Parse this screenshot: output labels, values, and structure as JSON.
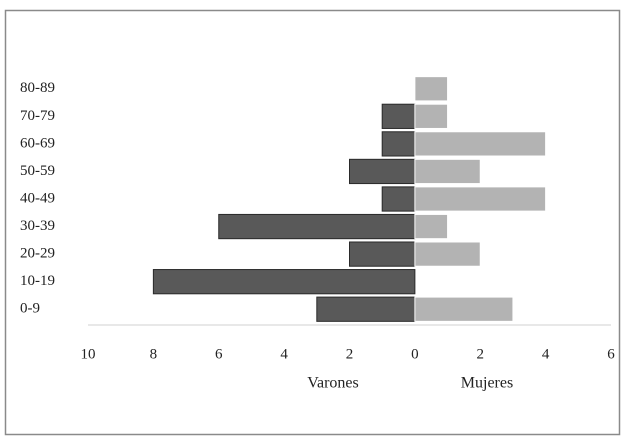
{
  "chart_data": {
    "type": "bar",
    "orientation": "horizontal",
    "categories": [
      "0-9",
      "10-19",
      "20-29",
      "30-39",
      "40-49",
      "50-59",
      "60-69",
      "70-79",
      "80-89"
    ],
    "series": [
      {
        "name": "Varones",
        "color": "#595959",
        "values": [
          -3,
          -8,
          -2,
          -6,
          -1,
          -2,
          -1,
          -1,
          0
        ]
      },
      {
        "name": "Mujeres",
        "color": "#b3b3b3",
        "values": [
          3,
          0,
          2,
          1,
          4,
          2,
          4,
          1,
          1
        ]
      }
    ],
    "xlim": [
      -10,
      6
    ],
    "xticks": [
      {
        "value": -10,
        "label": "10"
      },
      {
        "value": -8,
        "label": "8"
      },
      {
        "value": -6,
        "label": "6"
      },
      {
        "value": -4,
        "label": "4"
      },
      {
        "value": -2,
        "label": "2"
      },
      0,
      2,
      4,
      6
    ],
    "grid": false
  }
}
